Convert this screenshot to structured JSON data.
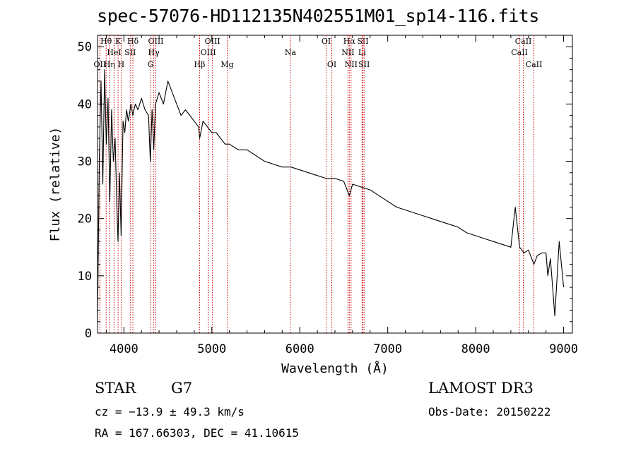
{
  "chart_data": {
    "type": "line",
    "title": "spec-57076-HD112135N402551M01_sp14-116.fits",
    "xlabel": "Wavelength (Å)",
    "ylabel": "Flux (relative)",
    "xlim": [
      3700,
      9100
    ],
    "ylim": [
      0,
      52
    ],
    "xticks": [
      4000,
      5000,
      6000,
      7000,
      8000,
      9000
    ],
    "yticks": [
      0,
      10,
      20,
      30,
      40,
      50
    ],
    "series": [
      {
        "name": "flux",
        "x": [
          3700,
          3720,
          3740,
          3760,
          3780,
          3800,
          3820,
          3840,
          3860,
          3880,
          3900,
          3920,
          3933,
          3950,
          3968,
          3990,
          4010,
          4030,
          4050,
          4080,
          4101,
          4130,
          4160,
          4200,
          4240,
          4280,
          4300,
          4320,
          4340,
          4360,
          4400,
          4450,
          4500,
          4550,
          4600,
          4650,
          4700,
          4750,
          4800,
          4850,
          4861,
          4900,
          4950,
          5000,
          5050,
          5100,
          5150,
          5200,
          5300,
          5400,
          5500,
          5600,
          5700,
          5800,
          5900,
          6000,
          6100,
          6200,
          6300,
          6400,
          6500,
          6563,
          6600,
          6700,
          6800,
          6900,
          7000,
          7100,
          7200,
          7300,
          7400,
          7500,
          7600,
          7700,
          7800,
          7900,
          8000,
          8100,
          8200,
          8300,
          8400,
          8450,
          8500,
          8550,
          8600,
          8662,
          8700,
          8750,
          8800,
          8820,
          8850,
          8900,
          8950,
          9000
        ],
        "y": [
          2,
          30,
          44,
          26,
          46,
          33,
          41,
          23,
          39,
          30,
          34,
          22,
          16,
          28,
          17,
          37,
          35,
          39,
          37,
          40,
          38,
          40,
          39,
          41,
          39,
          38,
          30,
          39,
          32,
          40,
          42,
          40,
          44,
          42,
          40,
          38,
          39,
          38,
          37,
          36,
          34,
          37,
          36,
          35,
          35,
          34,
          33,
          33,
          32,
          32,
          31,
          30,
          29.5,
          29,
          29,
          28.5,
          28,
          27.5,
          27,
          27,
          26.5,
          24,
          26,
          25.5,
          25,
          24,
          23,
          22,
          21.5,
          21,
          20.5,
          20,
          19.5,
          19,
          18.5,
          17.5,
          17,
          16.5,
          16,
          15.5,
          15,
          22,
          15,
          14,
          14.5,
          12,
          13.5,
          14,
          14,
          10,
          13,
          3,
          16,
          8
        ]
      }
    ],
    "line_markers": [
      {
        "label": "Hθ",
        "wavelength": 3798,
        "row": 1
      },
      {
        "label": "OII",
        "wavelength": 3727,
        "row": 3
      },
      {
        "label": "HeI",
        "wavelength": 3889,
        "row": 2
      },
      {
        "label": "Hη",
        "wavelength": 3835,
        "row": 3
      },
      {
        "label": "K",
        "wavelength": 3934,
        "row": 1
      },
      {
        "label": "H",
        "wavelength": 3969,
        "row": 3
      },
      {
        "label": "SII",
        "wavelength": 4072,
        "row": 2
      },
      {
        "label": "Hδ",
        "wavelength": 4102,
        "row": 1
      },
      {
        "label": "OIII",
        "wavelength": 4363,
        "row": 1
      },
      {
        "label": "Hγ",
        "wavelength": 4340,
        "row": 2
      },
      {
        "label": "G",
        "wavelength": 4304,
        "row": 3
      },
      {
        "label": "Hβ",
        "wavelength": 4861,
        "row": 3
      },
      {
        "label": "OIII",
        "wavelength": 4959,
        "row": 2
      },
      {
        "label": "OIII",
        "wavelength": 5007,
        "row": 1
      },
      {
        "label": "Mg",
        "wavelength": 5175,
        "row": 3
      },
      {
        "label": "Na",
        "wavelength": 5893,
        "row": 2
      },
      {
        "label": "OI",
        "wavelength": 6300,
        "row": 1
      },
      {
        "label": "OI",
        "wavelength": 6364,
        "row": 3
      },
      {
        "label": "Hα",
        "wavelength": 6563,
        "row": 1
      },
      {
        "label": "NII",
        "wavelength": 6548,
        "row": 2
      },
      {
        "label": "NII",
        "wavelength": 6583,
        "row": 3
      },
      {
        "label": "SII",
        "wavelength": 6717,
        "row": 1
      },
      {
        "label": "Li",
        "wavelength": 6708,
        "row": 2
      },
      {
        "label": "SII",
        "wavelength": 6731,
        "row": 3
      },
      {
        "label": "CaII",
        "wavelength": 8542,
        "row": 1
      },
      {
        "label": "CaII",
        "wavelength": 8498,
        "row": 2
      },
      {
        "label": "CaII",
        "wavelength": 8662,
        "row": 3
      }
    ],
    "marker_color": "#cc0000",
    "line_color": "#000000"
  },
  "info": {
    "object_class": "STAR",
    "subclass": "G7",
    "survey": "LAMOST DR3",
    "redshift": "cz = −13.9 ± 49.3 km/s",
    "obs_date": "Obs-Date: 20150222",
    "coords": "RA = 167.66303, DEC =  41.10615"
  }
}
